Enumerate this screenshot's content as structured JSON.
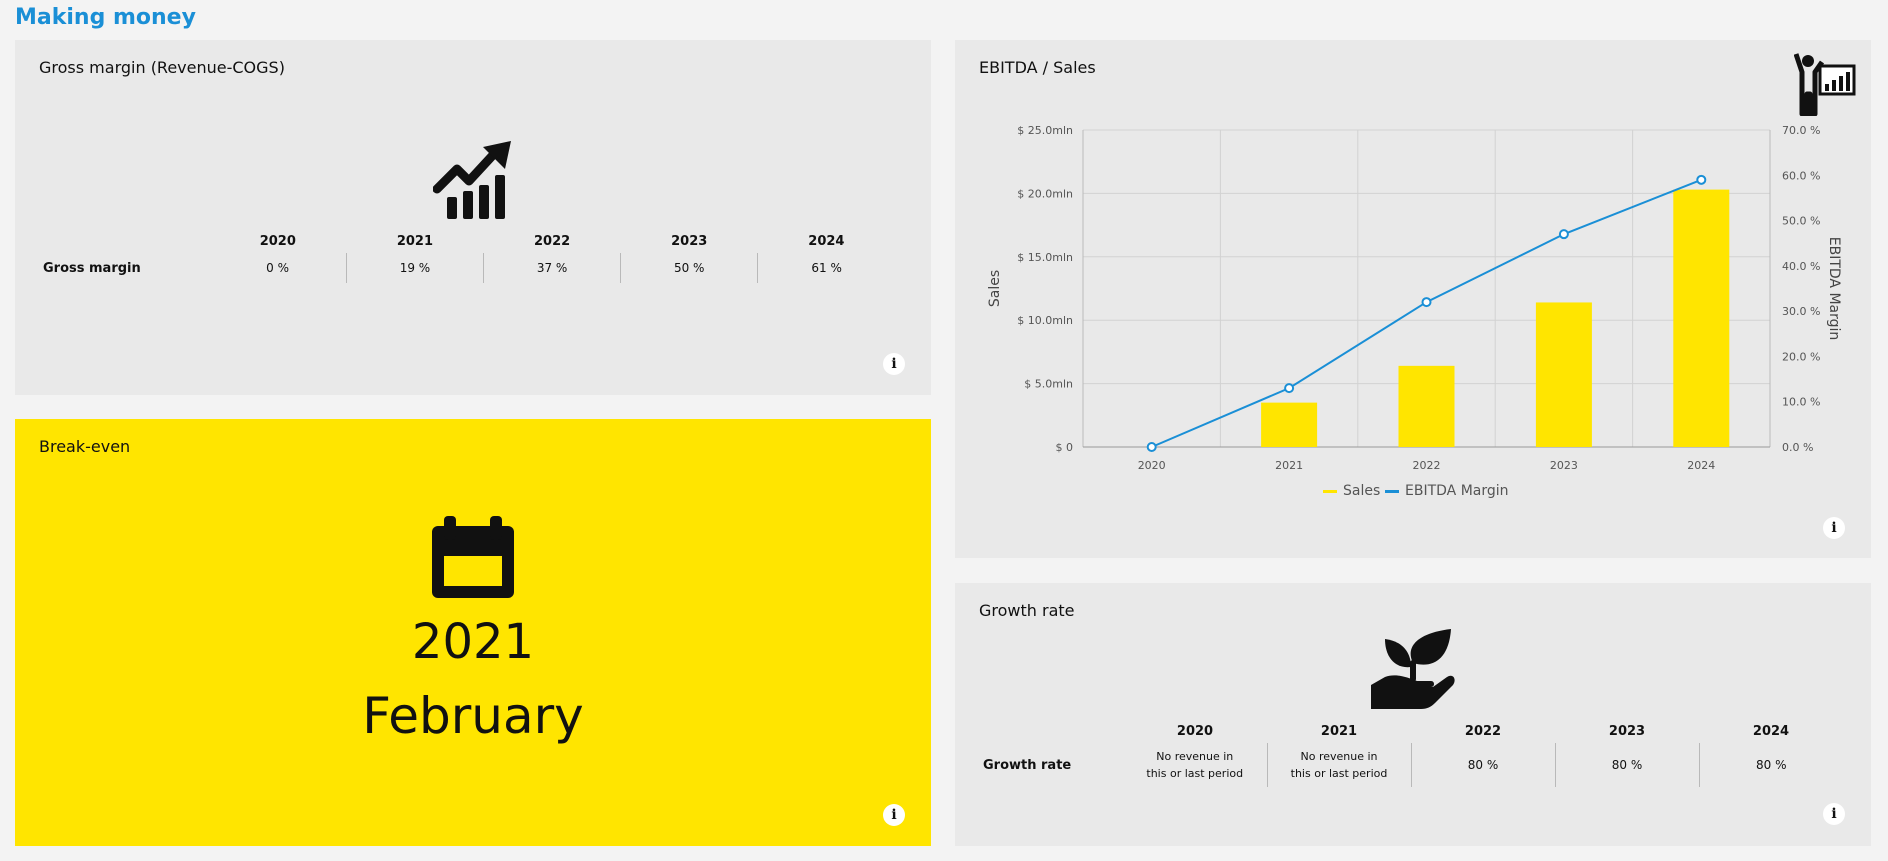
{
  "page": {
    "title": "Making money"
  },
  "gross_margin": {
    "title": "Gross margin (Revenue-COGS)",
    "years": [
      "2020",
      "2021",
      "2022",
      "2023",
      "2024"
    ],
    "row_label": "Gross margin",
    "values": [
      "0 %",
      "19 %",
      "37 %",
      "50 %",
      "61 %"
    ],
    "icon": "trending-up-chart-icon"
  },
  "break_even": {
    "title": "Break-even",
    "year": "2021",
    "month": "February",
    "icon": "calendar-icon",
    "background": "#ffe500"
  },
  "ebitda_sales": {
    "title": "EBITDA / Sales",
    "icon": "presenter-chart-icon",
    "legend": {
      "sales": "Sales",
      "ebitda": "EBITDA Margin"
    }
  },
  "growth_rate": {
    "title": "Growth rate",
    "years": [
      "2020",
      "2021",
      "2022",
      "2023",
      "2024"
    ],
    "row_label": "Growth rate",
    "values": [
      [
        "No revenue in",
        "this or last period"
      ],
      [
        "No revenue in",
        "this or last period"
      ],
      [
        "80 %"
      ],
      [
        "80 %"
      ],
      [
        "80 %"
      ]
    ],
    "icon": "plant-in-hand-icon"
  },
  "info_label": "i",
  "colors": {
    "accent": "#1a8fd6",
    "bar": "#ffe500",
    "line": "#1a8fd6"
  },
  "chart_data": {
    "type": "bar",
    "categories": [
      "2020",
      "2021",
      "2022",
      "2023",
      "2024"
    ],
    "series": [
      {
        "name": "Sales",
        "type": "bar",
        "axis": "left",
        "values": [
          0,
          3.5,
          6.4,
          11.4,
          20.3
        ]
      },
      {
        "name": "EBITDA Margin",
        "type": "line",
        "axis": "right",
        "values": [
          0,
          13,
          32,
          47,
          59
        ]
      }
    ],
    "ylabel": "Sales",
    "ylabel_right": "EBITDA Margin",
    "ylim": [
      0,
      25
    ],
    "ylim_right": [
      0,
      70
    ],
    "left_ticks": [
      "$ 0",
      "$ 5.0mln",
      "$ 10.0mln",
      "$ 15.0mln",
      "$ 20.0mln",
      "$ 25.0mln"
    ],
    "right_ticks": [
      "0.0 %",
      "10.0 %",
      "20.0 %",
      "30.0 %",
      "40.0 %",
      "50.0 %",
      "60.0 %",
      "70.0 %"
    ],
    "grid": true,
    "legend_position": "bottom"
  }
}
